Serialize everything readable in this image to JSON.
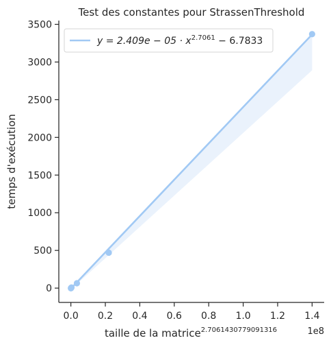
{
  "chart_data": {
    "type": "scatter",
    "title": "Test des constantes pour StrassenThreshold",
    "xlabel": "taille de la matrice",
    "xlabel_exponent": "2.7061430779091316",
    "ylabel": "temps d'exécution",
    "x_offset_label": "1e8",
    "x_scale": 100000000,
    "xlim": [
      -0.07,
      1.47
    ],
    "ylim": [
      -190,
      3550
    ],
    "x_ticks": [
      0.0,
      0.2,
      0.4,
      0.6,
      0.8,
      1.0,
      1.2,
      1.4
    ],
    "x_tick_labels": [
      "0.0",
      "0.2",
      "0.4",
      "0.6",
      "0.8",
      "1.0",
      "1.2",
      "1.4"
    ],
    "y_ticks": [
      0,
      500,
      1000,
      1500,
      2000,
      2500,
      3000,
      3500
    ],
    "y_tick_labels": [
      "0",
      "500",
      "1000",
      "1500",
      "2000",
      "2500",
      "3000",
      "3500"
    ],
    "grid": false,
    "legend_position": "top-left",
    "color": "#a1c9f4",
    "band_color": "#eaf2fc",
    "points": [
      {
        "x": 0.0002,
        "y": -2
      },
      {
        "x": 0.0007,
        "y": 0
      },
      {
        "x": 0.0015,
        "y": 3
      },
      {
        "x": 0.0035,
        "y": 8
      },
      {
        "x": 0.035,
        "y": 65
      },
      {
        "x": 0.22,
        "y": 470
      },
      {
        "x": 1.4,
        "y": 3370
      }
    ],
    "fit": {
      "slope": 2.409e-05,
      "intercept": -6.7833,
      "x_range": [
        0.0,
        1.4
      ],
      "ci_upper_end": 3380,
      "ci_lower_end": 2890,
      "legend_label": {
        "prefix": "y = 2.409e − 05 · x",
        "exponent": "2.7061",
        "suffix": " − 6.7833"
      }
    }
  }
}
